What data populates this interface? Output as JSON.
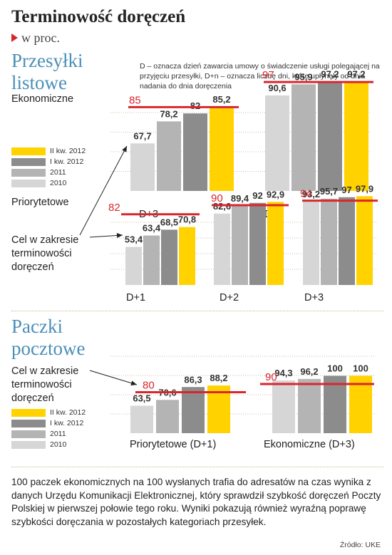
{
  "header": {
    "title": "Terminowość doręczeń",
    "unit": "w proc."
  },
  "sections": {
    "letters_title": "Przesyłki listowe",
    "letters_subtitle_economic": "Ekonomiczne",
    "letters_subtitle_priority": "Priorytetowe",
    "parcels_title": "Paczki pocztowe"
  },
  "note": "D – oznacza dzień zawarcia umowy o świadczenie usługi polegającej na przyjęciu przesyłki, D+n – oznacza liczbę dni, które upłynęły od dnia nadania do dnia doręczenia",
  "target_label": "Cel w zakresie terminowości doręczeń",
  "legend": {
    "items": [
      {
        "label": "II kw. 2012",
        "color": "#ffd200"
      },
      {
        "label": "I kw. 2012",
        "color": "#8c8c8c"
      },
      {
        "label": "2011",
        "color": "#b4b4b4"
      },
      {
        "label": "2010",
        "color": "#d6d6d6"
      }
    ]
  },
  "colors": {
    "target_line": "#d8262d",
    "year_2010": "#d6d6d6",
    "year_2011": "#b4b4b4",
    "q1_2012": "#8c8c8c",
    "q2_2012": "#ffd200"
  },
  "chart_data": [
    {
      "type": "bar",
      "title": "Przesyłki listowe – Ekonomiczne",
      "series_names": [
        "2010",
        "2011",
        "I kw. 2012",
        "II kw. 2012"
      ],
      "groups": [
        {
          "category": "D+3",
          "target": 85,
          "values": [
            67.7,
            78.2,
            82.0,
            85.2
          ]
        },
        {
          "category": "D+5",
          "target": 97,
          "values": [
            90.6,
            95.9,
            97.2,
            97.2
          ]
        }
      ]
    },
    {
      "type": "bar",
      "title": "Przesyłki listowe – Priorytetowe",
      "series_names": [
        "2010",
        "2011",
        "I kw. 2012",
        "II kw. 2012"
      ],
      "groups": [
        {
          "category": "D+1",
          "target": 82,
          "values": [
            53.4,
            63.4,
            68.5,
            70.8
          ]
        },
        {
          "category": "D+2",
          "target": 90,
          "values": [
            82.6,
            89.4,
            92.0,
            92.9
          ]
        },
        {
          "category": "D+3",
          "target": 94,
          "values": [
            93.2,
            95.7,
            97.0,
            97.9
          ]
        }
      ]
    },
    {
      "type": "bar",
      "title": "Paczki pocztowe",
      "series_names": [
        "2010",
        "2011",
        "I kw. 2012",
        "II kw. 2012"
      ],
      "groups": [
        {
          "category": "Priorytetowe (D+1)",
          "target": 80,
          "values": [
            63.5,
            70.6,
            86.3,
            88.2
          ]
        },
        {
          "category": "Ekonomiczne (D+3)",
          "target": 90,
          "values": [
            94.3,
            96.2,
            100,
            100
          ]
        }
      ]
    }
  ],
  "footer": {
    "text": "100 paczek ekonomicznych na 100 wysłanych trafia do adresatów na czas wynika z danych Urzędu Komunikacji Elektronicznej, który sprawdził szybkość doręczeń Poczty Polskiej w pierwszej połowie tego roku. Wyniki pokazują również wyraźną poprawę szybkości doręczania w pozostałych kategoriach przesyłek.",
    "source": "Źródło: UKE"
  }
}
